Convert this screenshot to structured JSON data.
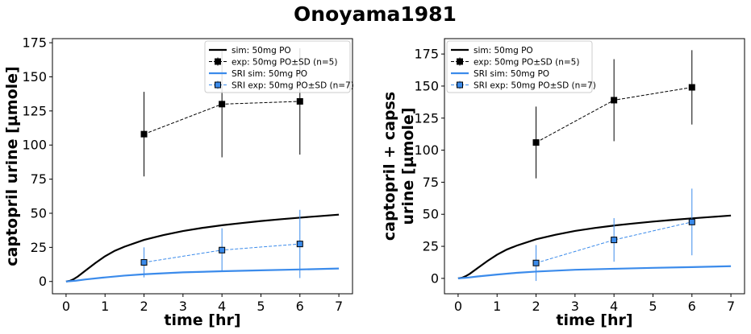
{
  "figure": {
    "title": "Onoyama1981"
  },
  "chart_data": [
    {
      "type": "line",
      "xlabel": "time [hr]",
      "ylabel_lines": [
        "captopril urine [µmole]"
      ],
      "xlim": [
        -0.35,
        7.35
      ],
      "ylim": [
        -9,
        178
      ],
      "xticks": [
        0,
        1,
        2,
        3,
        4,
        5,
        6,
        7
      ],
      "yticks": [
        0,
        25,
        50,
        75,
        100,
        125,
        150,
        175
      ],
      "legend_position": "top-right",
      "series": [
        {
          "name": "sim: 50mg PO",
          "kind": "line",
          "color": "#000000",
          "x": [
            0,
            0.1,
            0.2,
            0.3,
            0.5,
            0.75,
            1.0,
            1.25,
            1.5,
            2.0,
            2.5,
            3.0,
            3.5,
            4.0,
            4.5,
            5.0,
            5.5,
            6.0,
            6.5,
            7.0
          ],
          "y": [
            0,
            0.5,
            1.8,
            3.6,
            8.0,
            13.5,
            18.5,
            22.5,
            25.5,
            30.5,
            34.0,
            37.0,
            39.3,
            41.2,
            42.8,
            44.3,
            45.6,
            46.8,
            47.9,
            49.0
          ]
        },
        {
          "name": "exp: 50mg PO±SD (n=5)",
          "kind": "errorbar",
          "color": "#000000",
          "marker_fill": "#000000",
          "x": [
            2,
            4,
            6
          ],
          "y": [
            108,
            130,
            132
          ],
          "err": [
            31,
            39,
            39
          ]
        },
        {
          "name": "SRI sim: 50mg PO",
          "kind": "line",
          "color": "#3b8beb",
          "x": [
            0,
            0.25,
            0.5,
            1.0,
            1.5,
            2.0,
            3.0,
            4.0,
            5.0,
            6.0,
            7.0
          ],
          "y": [
            0,
            0.6,
            1.5,
            3.0,
            4.3,
            5.3,
            6.7,
            7.5,
            8.2,
            8.8,
            9.5
          ]
        },
        {
          "name": "SRI exp: 50mg PO±SD (n=7)",
          "kind": "errorbar",
          "color": "#3b8beb",
          "marker_fill": "#3b8beb",
          "x": [
            2,
            4,
            6
          ],
          "y": [
            14,
            23,
            27.5
          ],
          "err": [
            11,
            16,
            25
          ]
        }
      ]
    },
    {
      "type": "line",
      "xlabel": "time [hr]",
      "ylabel_lines": [
        "captopril + capss",
        "urine [µmole]"
      ],
      "xlim": [
        -0.35,
        7.35
      ],
      "ylim": [
        -12,
        187
      ],
      "xticks": [
        0,
        1,
        2,
        3,
        4,
        5,
        6,
        7
      ],
      "yticks": [
        0,
        25,
        50,
        75,
        100,
        125,
        150,
        175
      ],
      "legend_position": "top-left",
      "series": [
        {
          "name": "sim: 50mg PO",
          "kind": "line",
          "color": "#000000",
          "x": [
            0,
            0.1,
            0.2,
            0.3,
            0.5,
            0.75,
            1.0,
            1.25,
            1.5,
            2.0,
            2.5,
            3.0,
            3.5,
            4.0,
            4.5,
            5.0,
            5.5,
            6.0,
            6.5,
            7.0
          ],
          "y": [
            0,
            0.5,
            1.8,
            3.6,
            8.0,
            13.5,
            18.5,
            22.5,
            25.5,
            30.5,
            34.0,
            37.0,
            39.3,
            41.2,
            42.8,
            44.3,
            45.6,
            46.8,
            47.9,
            49.0
          ]
        },
        {
          "name": "exp: 50mg PO±SD (n=5)",
          "kind": "errorbar",
          "color": "#000000",
          "marker_fill": "#000000",
          "x": [
            2,
            4,
            6
          ],
          "y": [
            106,
            139,
            149
          ],
          "err": [
            28,
            32,
            29
          ]
        },
        {
          "name": "SRI sim: 50mg PO",
          "kind": "line",
          "color": "#3b8beb",
          "x": [
            0,
            0.25,
            0.5,
            1.0,
            1.5,
            2.0,
            3.0,
            4.0,
            5.0,
            6.0,
            7.0
          ],
          "y": [
            0,
            0.6,
            1.5,
            3.0,
            4.3,
            5.3,
            6.7,
            7.5,
            8.2,
            8.8,
            9.5
          ]
        },
        {
          "name": "SRI exp: 50mg PO±SD (n=7)",
          "kind": "errorbar",
          "color": "#3b8beb",
          "marker_fill": "#3b8beb",
          "x": [
            2,
            4,
            6
          ],
          "y": [
            12,
            30,
            44
          ],
          "err": [
            14,
            17,
            26
          ]
        }
      ]
    }
  ]
}
